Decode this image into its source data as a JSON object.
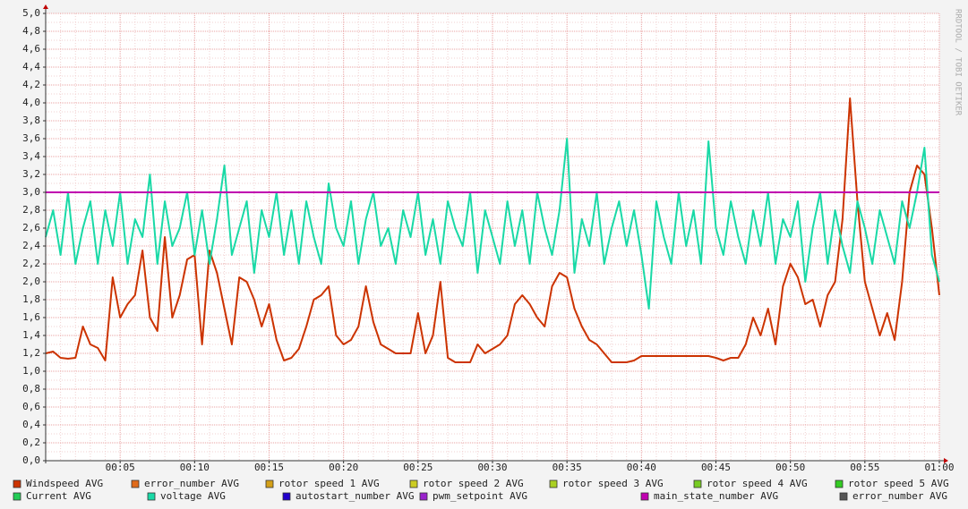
{
  "chart_data": {
    "type": "line",
    "watermark": "RRDTOOL / TOBI OETIKER",
    "x": [
      0,
      0.5,
      1,
      1.5,
      2,
      2.5,
      3,
      3.5,
      4,
      4.5,
      5,
      5.5,
      6,
      6.5,
      7,
      7.5,
      8,
      8.5,
      9,
      9.5,
      10,
      10.5,
      11,
      11.5,
      12,
      12.5,
      13,
      13.5,
      14,
      14.5,
      15,
      15.5,
      16,
      16.5,
      17,
      17.5,
      18,
      18.5,
      19,
      19.5,
      20,
      20.5,
      21,
      21.5,
      22,
      22.5,
      23,
      23.5,
      24,
      24.5,
      25,
      25.5,
      26,
      26.5,
      27,
      27.5,
      28,
      28.5,
      29,
      29.5,
      30,
      30.5,
      31,
      31.5,
      32,
      32.5,
      33,
      33.5,
      34,
      34.5,
      35,
      35.5,
      36,
      36.5,
      37,
      37.5,
      38,
      38.5,
      39,
      39.5,
      40,
      40.5,
      41,
      41.5,
      42,
      42.5,
      43,
      43.5,
      44,
      44.5,
      45,
      45.5,
      46,
      46.5,
      47,
      47.5,
      48,
      48.5,
      49,
      49.5,
      50,
      50.5,
      51,
      51.5,
      52,
      52.5,
      53,
      53.5,
      54,
      54.5,
      55,
      55.5,
      56,
      56.5,
      57,
      57.5,
      58,
      58.5,
      59,
      59.5,
      60
    ],
    "xlim": [
      0,
      60
    ],
    "xticks": [
      {
        "value": 5,
        "label": "00:05"
      },
      {
        "value": 10,
        "label": "00:10"
      },
      {
        "value": 15,
        "label": "00:15"
      },
      {
        "value": 20,
        "label": "00:20"
      },
      {
        "value": 25,
        "label": "00:25"
      },
      {
        "value": 30,
        "label": "00:30"
      },
      {
        "value": 35,
        "label": "00:35"
      },
      {
        "value": 40,
        "label": "00:40"
      },
      {
        "value": 45,
        "label": "00:45"
      },
      {
        "value": 50,
        "label": "00:50"
      },
      {
        "value": 55,
        "label": "00:55"
      },
      {
        "value": 60,
        "label": "01:00"
      }
    ],
    "ylim": [
      0,
      5
    ],
    "yticks": [
      {
        "value": 0,
        "label": "0,0"
      },
      {
        "value": 0.2,
        "label": "0,2"
      },
      {
        "value": 0.4,
        "label": "0,4"
      },
      {
        "value": 0.6,
        "label": "0,6"
      },
      {
        "value": 0.8,
        "label": "0,8"
      },
      {
        "value": 1,
        "label": "1,0"
      },
      {
        "value": 1.2,
        "label": "1,2"
      },
      {
        "value": 1.4,
        "label": "1,4"
      },
      {
        "value": 1.6,
        "label": "1,6"
      },
      {
        "value": 1.8,
        "label": "1,8"
      },
      {
        "value": 2,
        "label": "2,0"
      },
      {
        "value": 2.2,
        "label": "2,2"
      },
      {
        "value": 2.4,
        "label": "2,4"
      },
      {
        "value": 2.6,
        "label": "2,6"
      },
      {
        "value": 2.8,
        "label": "2,8"
      },
      {
        "value": 3,
        "label": "3,0"
      },
      {
        "value": 3.2,
        "label": "3,2"
      },
      {
        "value": 3.4,
        "label": "3,4"
      },
      {
        "value": 3.6,
        "label": "3,6"
      },
      {
        "value": 3.8,
        "label": "3,8"
      },
      {
        "value": 4,
        "label": "4,0"
      },
      {
        "value": 4.2,
        "label": "4,2"
      },
      {
        "value": 4.4,
        "label": "4,4"
      },
      {
        "value": 4.6,
        "label": "4,6"
      },
      {
        "value": 4.8,
        "label": "4,8"
      },
      {
        "value": 5,
        "label": "5,0"
      }
    ],
    "grid": true,
    "series": [
      {
        "name": "Windspeed AVG",
        "color": "#cc3300",
        "values": [
          1.2,
          1.22,
          1.15,
          1.14,
          1.15,
          1.5,
          1.3,
          1.26,
          1.12,
          2.05,
          1.6,
          1.75,
          1.85,
          2.35,
          1.6,
          1.45,
          2.5,
          1.6,
          1.85,
          2.25,
          2.3,
          1.3,
          2.35,
          2.1,
          1.7,
          1.3,
          2.05,
          2.0,
          1.8,
          1.5,
          1.75,
          1.35,
          1.12,
          1.15,
          1.25,
          1.5,
          1.8,
          1.85,
          1.95,
          1.4,
          1.3,
          1.35,
          1.5,
          1.95,
          1.55,
          1.3,
          1.25,
          1.2,
          1.2,
          1.2,
          1.65,
          1.2,
          1.4,
          2.0,
          1.15,
          1.1,
          1.1,
          1.1,
          1.3,
          1.2,
          1.25,
          1.3,
          1.4,
          1.75,
          1.85,
          1.75,
          1.6,
          1.5,
          1.95,
          2.1,
          2.05,
          1.7,
          1.5,
          1.35,
          1.3,
          1.2,
          1.1,
          1.1,
          1.1,
          1.12,
          1.17,
          1.17,
          1.17,
          1.17,
          1.17,
          1.17,
          1.17,
          1.17,
          1.17,
          1.17,
          1.15,
          1.12,
          1.15,
          1.15,
          1.3,
          1.6,
          1.4,
          1.7,
          1.3,
          1.95,
          2.2,
          2.05,
          1.75,
          1.8,
          1.5,
          1.85,
          2.0,
          2.7,
          4.05,
          2.9,
          2.0,
          1.7,
          1.4,
          1.65,
          1.35,
          2.0,
          3.0,
          3.3,
          3.2,
          2.6,
          1.85
        ]
      },
      {
        "name": "error_number AVG",
        "color": "#e06a1a"
      },
      {
        "name": "rotor speed 1 AVG",
        "color": "#d4a017"
      },
      {
        "name": "rotor speed 2 AVG",
        "color": "#cccc22"
      },
      {
        "name": "rotor speed 3 AVG",
        "color": "#aad022"
      },
      {
        "name": "rotor speed 4 AVG",
        "color": "#77cc22"
      },
      {
        "name": "rotor speed 5 AVG",
        "color": "#33cc22"
      },
      {
        "name": "Current AVG",
        "color": "#22cc55"
      },
      {
        "name": "voltage AVG",
        "color": "#19d9a6",
        "values": [
          2.5,
          2.8,
          2.3,
          3.0,
          2.2,
          2.6,
          2.9,
          2.2,
          2.8,
          2.4,
          3.0,
          2.2,
          2.7,
          2.5,
          3.2,
          2.2,
          2.9,
          2.4,
          2.6,
          3.0,
          2.3,
          2.8,
          2.2,
          2.7,
          3.3,
          2.3,
          2.6,
          2.9,
          2.1,
          2.8,
          2.5,
          3.0,
          2.3,
          2.8,
          2.2,
          2.9,
          2.5,
          2.2,
          3.1,
          2.6,
          2.4,
          2.9,
          2.2,
          2.7,
          3.0,
          2.4,
          2.6,
          2.2,
          2.8,
          2.5,
          3.0,
          2.3,
          2.7,
          2.2,
          2.9,
          2.6,
          2.4,
          3.0,
          2.1,
          2.8,
          2.5,
          2.2,
          2.9,
          2.4,
          2.8,
          2.2,
          3.0,
          2.6,
          2.3,
          2.8,
          3.6,
          2.1,
          2.7,
          2.4,
          3.0,
          2.2,
          2.6,
          2.9,
          2.4,
          2.8,
          2.3,
          1.7,
          2.9,
          2.5,
          2.2,
          3.0,
          2.4,
          2.8,
          2.2,
          3.57,
          2.6,
          2.3,
          2.9,
          2.5,
          2.2,
          2.8,
          2.4,
          3.0,
          2.2,
          2.7,
          2.5,
          2.9,
          2.0,
          2.6,
          3.0,
          2.2,
          2.8,
          2.4,
          2.1,
          2.9,
          2.6,
          2.2,
          2.8,
          2.5,
          2.2,
          2.9,
          2.6,
          3.0,
          3.5,
          2.3,
          2.0
        ]
      },
      {
        "name": "autostart_number AVG",
        "color": "#2200cc"
      },
      {
        "name": "pwm_setpoint AVG",
        "color": "#9922cc"
      },
      {
        "name": "main_state_number AVG",
        "color": "#c000b0",
        "values": [
          3,
          3,
          3,
          3,
          3,
          3,
          3,
          3,
          3,
          3,
          3,
          3,
          3,
          3,
          3,
          3,
          3,
          3,
          3,
          3,
          3,
          3,
          3,
          3,
          3,
          3,
          3,
          3,
          3,
          3,
          3,
          3,
          3,
          3,
          3,
          3,
          3,
          3,
          3,
          3,
          3,
          3,
          3,
          3,
          3,
          3,
          3,
          3,
          3,
          3,
          3,
          3,
          3,
          3,
          3,
          3,
          3,
          3,
          3,
          3,
          3,
          3,
          3,
          3,
          3,
          3,
          3,
          3,
          3,
          3,
          3,
          3,
          3,
          3,
          3,
          3,
          3,
          3,
          3,
          3,
          3,
          3,
          3,
          3,
          3,
          3,
          3,
          3,
          3,
          3,
          3,
          3,
          3,
          3,
          3,
          3,
          3,
          3,
          3,
          3,
          3,
          3,
          3,
          3,
          3,
          3,
          3,
          3,
          3,
          3,
          3,
          3,
          3,
          3,
          3,
          3,
          3,
          3,
          3,
          3,
          3
        ]
      },
      {
        "name": "error_number AVG",
        "color": "#555555"
      }
    ]
  }
}
